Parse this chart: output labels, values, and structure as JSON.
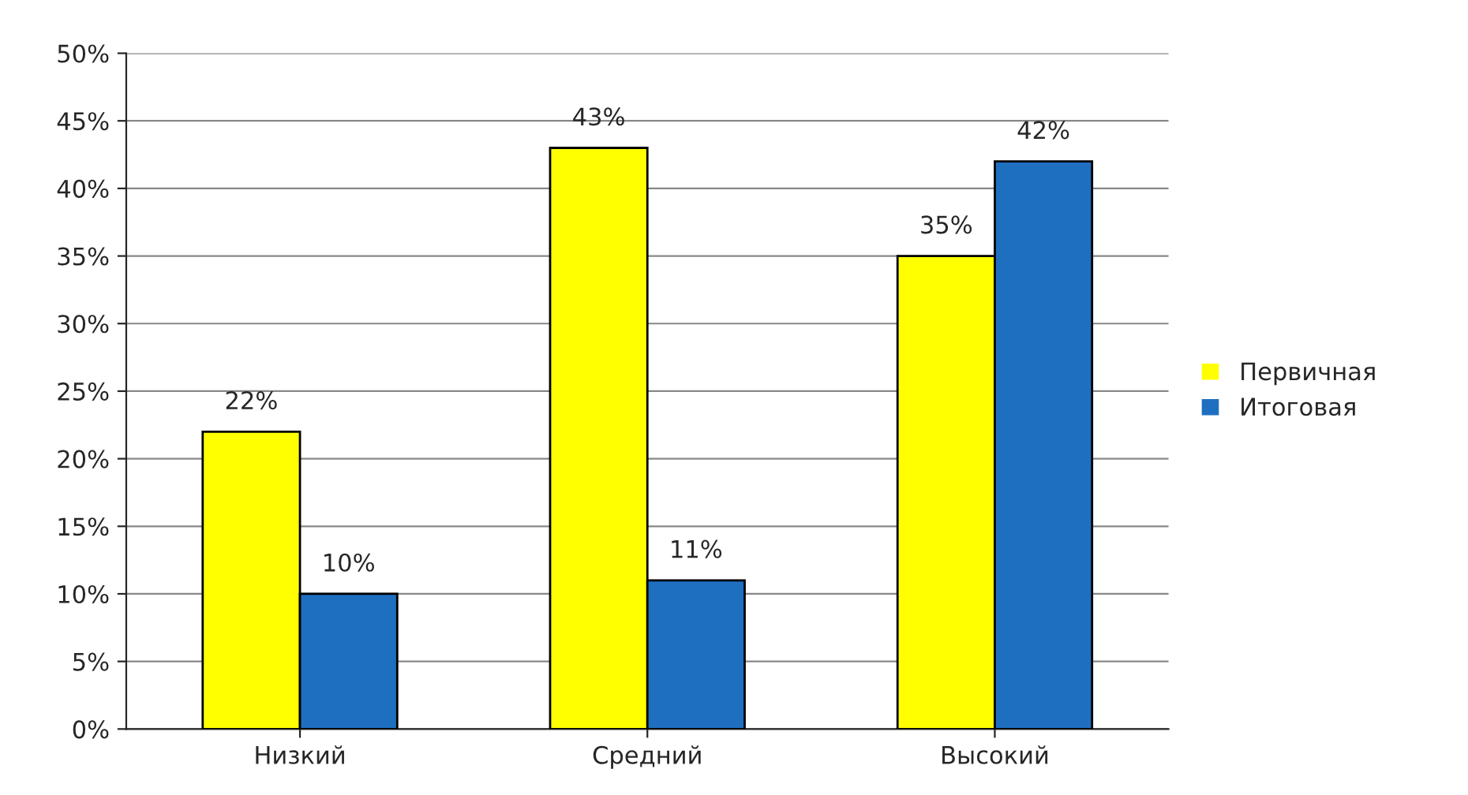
{
  "chart_data": {
    "type": "bar",
    "categories": [
      "Низкий",
      "Средний",
      "Высокий"
    ],
    "series": [
      {
        "name": "Первичная",
        "color": "#ffff00",
        "values": [
          22,
          43,
          35
        ],
        "value_labels": [
          "22%",
          "43%",
          "35%"
        ]
      },
      {
        "name": "Итоговая",
        "color": "#1f6fc0",
        "values": [
          10,
          11,
          42
        ],
        "value_labels": [
          "10%",
          "11%",
          "42%"
        ]
      }
    ],
    "ylim": [
      0,
      50
    ],
    "yticks": [
      {
        "value": 0,
        "label": "0%"
      },
      {
        "value": 5,
        "label": "5%"
      },
      {
        "value": 10,
        "label": "10%"
      },
      {
        "value": 15,
        "label": "15%"
      },
      {
        "value": 20,
        "label": "20%"
      },
      {
        "value": 25,
        "label": "25%"
      },
      {
        "value": 30,
        "label": "30%"
      },
      {
        "value": 35,
        "label": "35%"
      },
      {
        "value": 40,
        "label": "40%"
      },
      {
        "value": 45,
        "label": "45%"
      },
      {
        "value": 50,
        "label": "50%"
      }
    ],
    "grid": "y",
    "legend": "right"
  }
}
